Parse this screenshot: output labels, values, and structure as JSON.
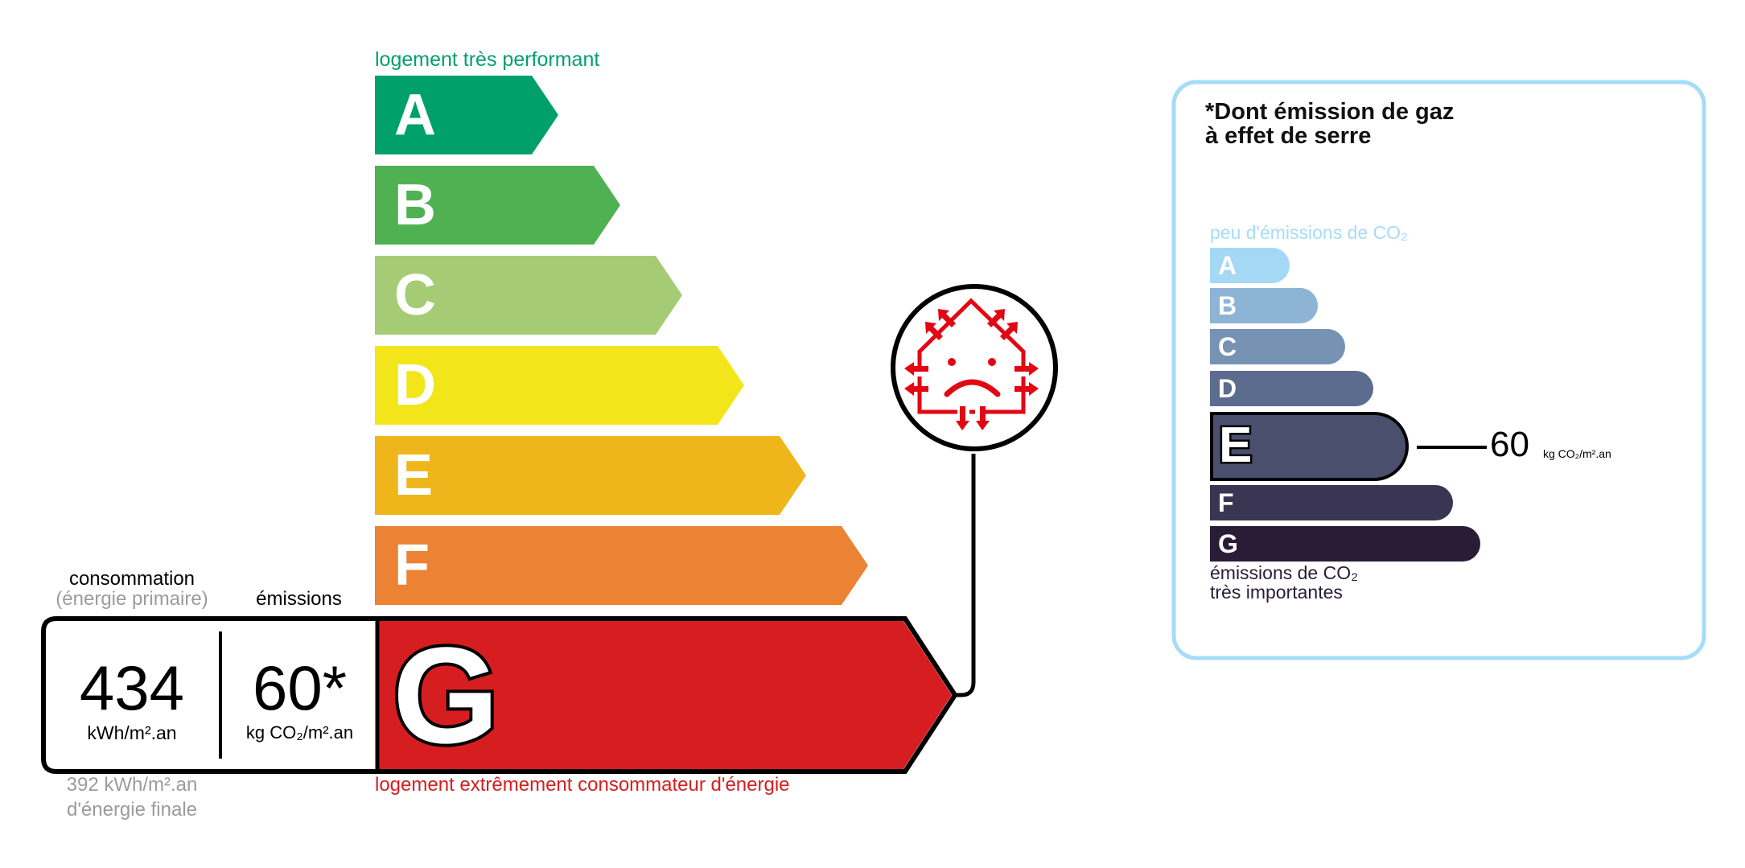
{
  "energy": {
    "top_label": "logement très performant",
    "bottom_label": "logement extrêmement consommateur d'énergie",
    "classes": [
      {
        "letter": "A",
        "color": "#00a06b"
      },
      {
        "letter": "B",
        "color": "#50b153"
      },
      {
        "letter": "C",
        "color": "#a5cc74"
      },
      {
        "letter": "D",
        "color": "#f2e61b"
      },
      {
        "letter": "E",
        "color": "#efb61b"
      },
      {
        "letter": "F",
        "color": "#eb8234"
      },
      {
        "letter": "G",
        "color": "#d61e20"
      }
    ],
    "current_class": "G",
    "consumption_header": "consommation",
    "consumption_subheader": "(énergie primaire)",
    "emissions_header": "émissions",
    "consumption_value": "434",
    "consumption_unit": "kWh/m².an",
    "emissions_value": "60*",
    "emissions_unit": "kg CO₂/m².an",
    "final_energy_line1": "392 kWh/m².an",
    "final_energy_line2": "d'énergie finale",
    "icon": "sad-house-heat-loss-icon"
  },
  "ges": {
    "title_line1": "*Dont émission de gaz",
    "title_line2": "à effet de serre",
    "top_label": "peu d'émissions de CO₂",
    "bottom_label_line1": "émissions de CO₂",
    "bottom_label_line2": "très importantes",
    "classes": [
      {
        "letter": "A",
        "color": "#a4d8f5"
      },
      {
        "letter": "B",
        "color": "#8db4d4"
      },
      {
        "letter": "C",
        "color": "#7693b4"
      },
      {
        "letter": "D",
        "color": "#5c6c8f"
      },
      {
        "letter": "E",
        "color": "#4a4f6e"
      },
      {
        "letter": "F",
        "color": "#393552"
      },
      {
        "letter": "G",
        "color": "#2a1c36"
      }
    ],
    "current_class": "E",
    "value": "60",
    "unit": "kg CO₂/m².an",
    "border_color": "#a5dcf7"
  }
}
